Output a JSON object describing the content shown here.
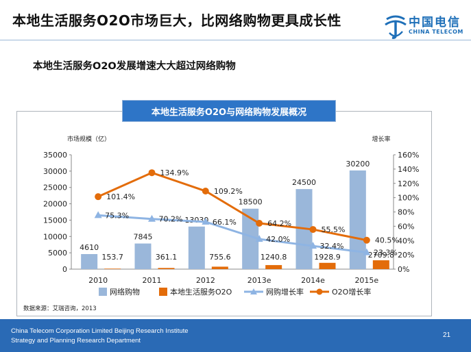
{
  "slide": {
    "title": "本地生活服务O2O市场巨大，比网络购物更具成长性",
    "subtitle": "本地生活服务O2O发展增速大大超过网络购物",
    "logo_cn": "中国电信",
    "logo_en": "CHINA TELECOM",
    "source": "数据来源：艾瑞咨询，2013",
    "footer_line1": "China Telecom Corporation Limited Beijing Research Institute",
    "footer_line2": "Strategy and Planning Research Department",
    "page_number": "21",
    "brand_color": "#1e6fb8"
  },
  "chart_data": {
    "type": "bar",
    "title": "本地生活服务O2O与网络购物发展概况",
    "ylabel": "市场规模（亿）",
    "y2label": "增长率",
    "categories": [
      "2010",
      "2011",
      "2012",
      "2013e",
      "2014e",
      "2015e"
    ],
    "ylim": [
      0,
      35000
    ],
    "yticks": [
      "0",
      "5000",
      "10000",
      "15000",
      "20000",
      "25000",
      "30000",
      "35000"
    ],
    "y2lim": [
      0,
      160
    ],
    "y2ticks": [
      "0%",
      "20%",
      "40%",
      "60%",
      "80%",
      "100%",
      "120%",
      "140%",
      "160%"
    ],
    "series": [
      {
        "name": "网络购物",
        "kind": "bar",
        "axis": "left",
        "color": "#9ab7da",
        "values": [
          4610,
          7845,
          13030,
          18500,
          24500,
          30200
        ],
        "labels": [
          "4610",
          "7845",
          "13030",
          "18500",
          "24500",
          "30200"
        ]
      },
      {
        "name": "本地生活服务O2O",
        "kind": "bar",
        "axis": "left",
        "color": "#e36c0a",
        "values": [
          153.7,
          361.1,
          755.6,
          1240.8,
          1928.9,
          2709.8
        ],
        "labels": [
          "153.7",
          "361.1",
          "755.6",
          "1240.8",
          "1928.9",
          "2709.8"
        ]
      },
      {
        "name": "网购增长率",
        "kind": "line",
        "axis": "right",
        "color": "#8eb4e3",
        "marker": "triangle",
        "values": [
          75.3,
          70.2,
          66.1,
          42.0,
          32.4,
          23.3
        ],
        "labels": [
          "75.3%",
          "70.2%",
          "66.1%",
          "42.0%",
          "32.4%",
          "23.3%"
        ]
      },
      {
        "name": "O2O增长率",
        "kind": "line",
        "axis": "right",
        "color": "#e36c0a",
        "marker": "circle",
        "values": [
          101.4,
          134.9,
          109.2,
          64.2,
          55.5,
          40.5
        ],
        "labels": [
          "101.4%",
          "134.9%",
          "109.2%",
          "64.2%",
          "55.5%",
          "40.5%"
        ]
      }
    ],
    "legend": "bottom",
    "grid": false
  }
}
